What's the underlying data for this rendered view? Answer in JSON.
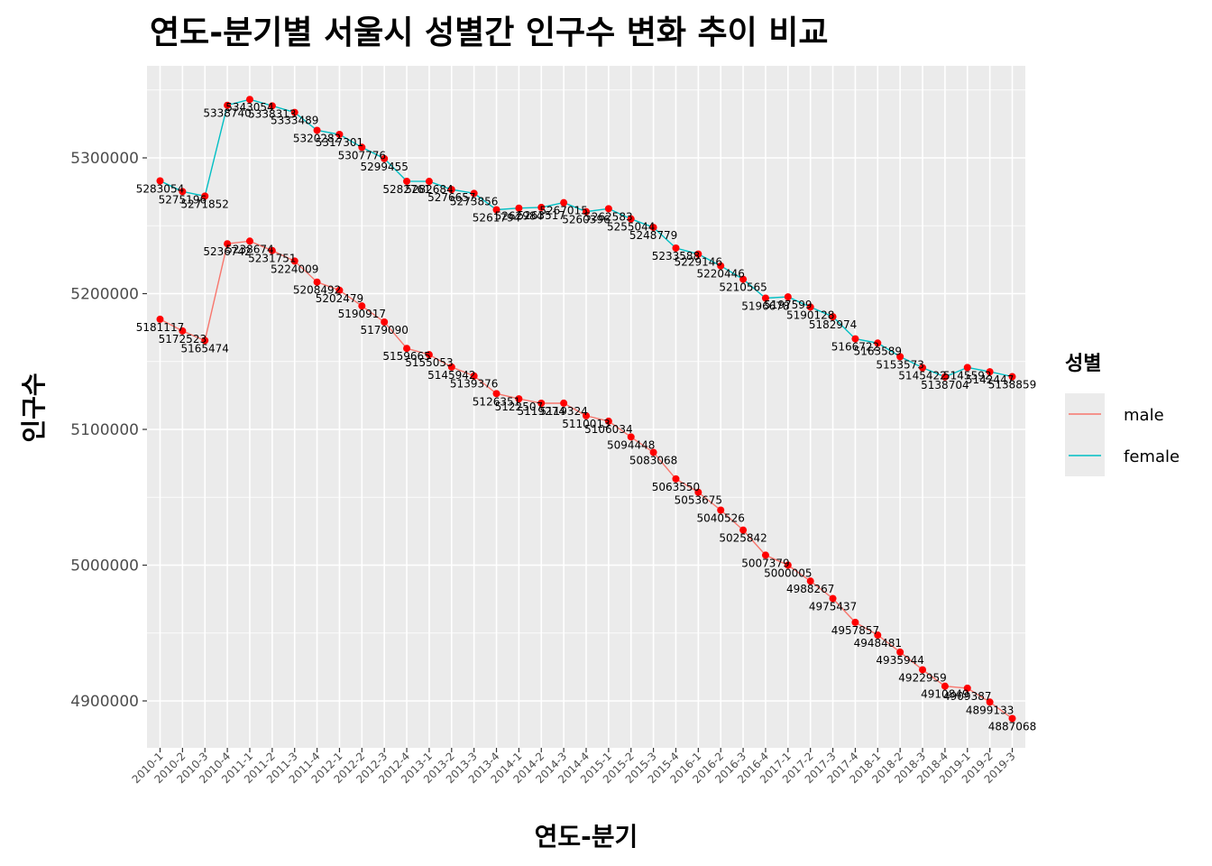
{
  "chart_data": {
    "type": "line",
    "title": "연도-분기별 서울시 성별간 인구수 변화 추이 비교",
    "xlabel": "연도-분기",
    "ylabel": "인구수",
    "ylim": [
      4865000,
      5355000
    ],
    "yticks": [
      4900000,
      5000000,
      5100000,
      5200000,
      5300000
    ],
    "grid": true,
    "legend": {
      "title": "성별",
      "position": "right"
    },
    "categories": [
      "2010-1",
      "2010-2",
      "2010-3",
      "2010-4",
      "2011-1",
      "2011-2",
      "2011-3",
      "2011-4",
      "2012-1",
      "2012-2",
      "2012-3",
      "2012-4",
      "2013-1",
      "2013-2",
      "2013-3",
      "2013-4",
      "2014-1",
      "2014-2",
      "2014-3",
      "2014-4",
      "2015-1",
      "2015-2",
      "2015-3",
      "2015-4",
      "2016-1",
      "2016-2",
      "2016-3",
      "2016-4",
      "2017-1",
      "2017-2",
      "2017-3",
      "2017-4",
      "2018-1",
      "2018-2",
      "2018-3",
      "2018-4",
      "2019-1",
      "2019-2",
      "2019-3"
    ],
    "series": [
      {
        "name": "male",
        "color": "#F8766D",
        "values": [
          5181117,
          5172523,
          5165474,
          5236742,
          5238674,
          5231751,
          5224009,
          5208492,
          5202479,
          5190917,
          5179090,
          5159665,
          5155053,
          5145942,
          5139376,
          5126351,
          5122507,
          5119274,
          5119324,
          5110013,
          5106034,
          5094448,
          5083068,
          5063550,
          5053675,
          5040526,
          5025842,
          5007379,
          5000005,
          4988267,
          4975437,
          4957857,
          4948481,
          4935944,
          4922959,
          4910849,
          4909387,
          4899133,
          4887068
        ]
      },
      {
        "name": "female",
        "color": "#00BFC4",
        "values": [
          5283054,
          5275196,
          5271852,
          5338740,
          5343054,
          5338313,
          5333489,
          5320282,
          5317301,
          5307776,
          5299455,
          5282761,
          5282684,
          5276657,
          5273856,
          5261794,
          5262984,
          5263517,
          5267015,
          5260396,
          5262583,
          5255044,
          5248779,
          5233588,
          5229146,
          5220446,
          5210565,
          5196678,
          5197599,
          5190128,
          5182974,
          5166722,
          5163589,
          5153573,
          5145422,
          5138704,
          5145592,
          5142447,
          5138859
        ]
      }
    ]
  },
  "colors": {
    "point": "#FF0000",
    "panel": "#EBEBEB",
    "grid": "#FFFFFF"
  }
}
